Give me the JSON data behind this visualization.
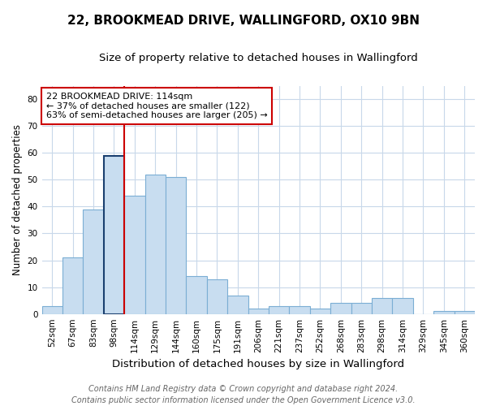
{
  "title": "22, BROOKMEAD DRIVE, WALLINGFORD, OX10 9BN",
  "subtitle": "Size of property relative to detached houses in Wallingford",
  "xlabel": "Distribution of detached houses by size in Wallingford",
  "ylabel": "Number of detached properties",
  "bar_labels": [
    "52sqm",
    "67sqm",
    "83sqm",
    "98sqm",
    "114sqm",
    "129sqm",
    "144sqm",
    "160sqm",
    "175sqm",
    "191sqm",
    "206sqm",
    "221sqm",
    "237sqm",
    "252sqm",
    "268sqm",
    "283sqm",
    "298sqm",
    "314sqm",
    "329sqm",
    "345sqm",
    "360sqm"
  ],
  "bar_values": [
    3,
    21,
    39,
    59,
    44,
    52,
    51,
    14,
    13,
    7,
    2,
    3,
    3,
    2,
    4,
    4,
    6,
    6,
    0,
    1,
    1
  ],
  "bar_fill_color": "#c8ddf0",
  "bar_edge_color": "#7baed4",
  "highlight_bar_index": 3,
  "highlight_edge_color": "#1a3f6f",
  "vline_color": "#cc0000",
  "vline_x_index": 4,
  "ylim": [
    0,
    85
  ],
  "yticks": [
    0,
    10,
    20,
    30,
    40,
    50,
    60,
    70,
    80
  ],
  "annotation_text": "22 BROOKMEAD DRIVE: 114sqm\n← 37% of detached houses are smaller (122)\n63% of semi-detached houses are larger (205) →",
  "annotation_box_facecolor": "#ffffff",
  "annotation_box_edgecolor": "#cc0000",
  "footer_line1": "Contains HM Land Registry data © Crown copyright and database right 2024.",
  "footer_line2": "Contains public sector information licensed under the Open Government Licence v3.0.",
  "background_color": "#ffffff",
  "plot_bg_color": "#ffffff",
  "grid_color": "#c8d8ea",
  "title_fontsize": 11,
  "subtitle_fontsize": 9.5,
  "xlabel_fontsize": 9.5,
  "ylabel_fontsize": 8.5,
  "tick_fontsize": 7.5,
  "annotation_fontsize": 8,
  "footer_fontsize": 7
}
